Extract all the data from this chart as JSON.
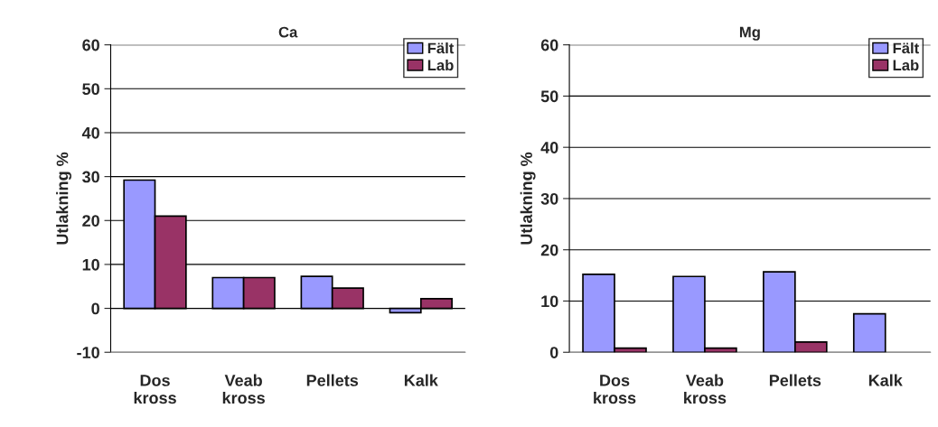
{
  "chart_data": [
    {
      "type": "bar",
      "title": "Ca",
      "ylabel": "Utlakning %",
      "categories": [
        "Dos\nkross",
        "Veab\nkross",
        "Pellets",
        "Kalk"
      ],
      "series": [
        {
          "name": "Fält",
          "color": "#9999ff",
          "values": [
            29.2,
            7.0,
            7.3,
            -1.0
          ]
        },
        {
          "name": "Lab",
          "color": "#993366",
          "values": [
            21.0,
            7.0,
            4.6,
            2.2
          ]
        }
      ],
      "ylim": [
        -10,
        60
      ],
      "yticks": [
        -10,
        0,
        10,
        20,
        30,
        40,
        50,
        60
      ],
      "grid": "y",
      "legend": "top right"
    },
    {
      "type": "bar",
      "title": "Mg",
      "ylabel": "Utlakning %",
      "categories": [
        "Dos\nkross",
        "Veab\nkross",
        "Pellets",
        "Kalk"
      ],
      "series": [
        {
          "name": "Fält",
          "color": "#9999ff",
          "values": [
            15.2,
            14.8,
            15.7,
            7.5
          ]
        },
        {
          "name": "Lab",
          "color": "#993366",
          "values": [
            0.8,
            0.8,
            2.0,
            null
          ]
        }
      ],
      "ylim": [
        0,
        60
      ],
      "yticks": [
        0,
        10,
        20,
        30,
        40,
        50,
        60
      ],
      "grid": "y",
      "legend": "top right"
    }
  ]
}
